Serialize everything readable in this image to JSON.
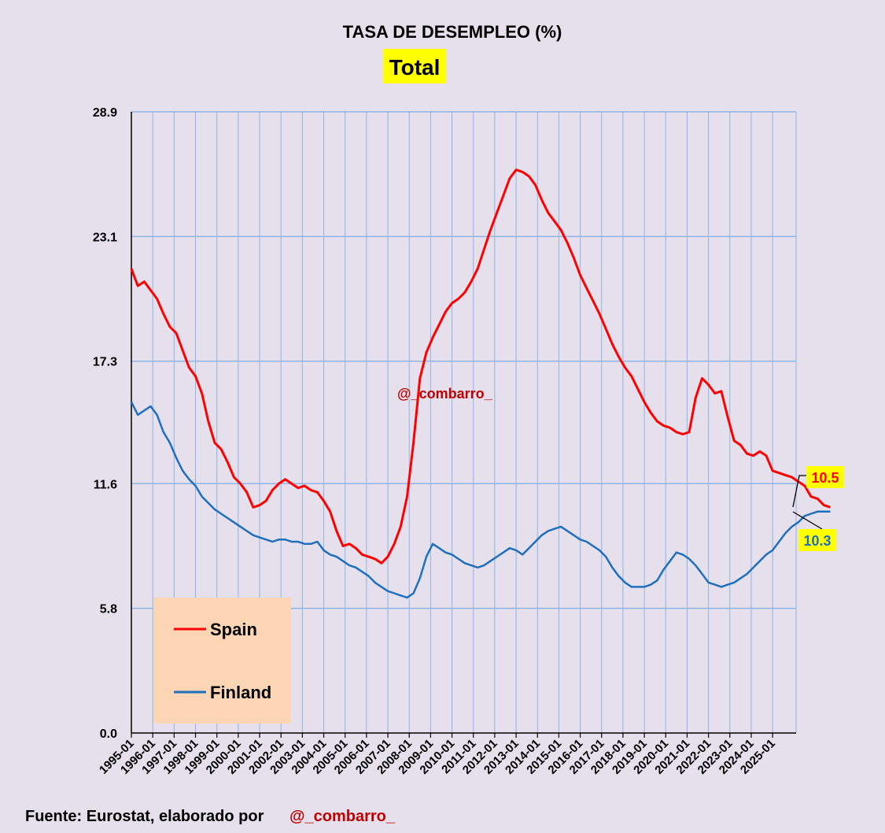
{
  "chart_data": {
    "type": "line",
    "title": "TASA DE DESEMPLEO (%)",
    "subtitle": "Total",
    "xlabel": "",
    "ylabel": "",
    "ylim": [
      0,
      28.9
    ],
    "yticks": [
      "0.0",
      "5.8",
      "11.6",
      "17.3",
      "23.1",
      "28.9"
    ],
    "categories": [
      "1995-01",
      "1996-01",
      "1997-01",
      "1998-01",
      "1999-01",
      "2000-01",
      "2001-01",
      "2002-01",
      "2003-01",
      "2004-01",
      "2005-01",
      "2006-01",
      "2007-01",
      "2008-01",
      "2009-01",
      "2010-01",
      "2011-01",
      "2012-01",
      "2013-01",
      "2014-01",
      "2015-01",
      "2016-01",
      "2017-01",
      "2018-01",
      "2019-01",
      "2020-01",
      "2021-01",
      "2022-01",
      "2023-01",
      "2024-01",
      "2025-01"
    ],
    "series": [
      {
        "name": "Spain",
        "color": "#ff0000",
        "points": [
          [
            0,
            21.6
          ],
          [
            0.3,
            20.8
          ],
          [
            0.6,
            21.0
          ],
          [
            0.9,
            20.6
          ],
          [
            1.2,
            20.2
          ],
          [
            1.5,
            19.5
          ],
          [
            1.8,
            18.9
          ],
          [
            2.1,
            18.6
          ],
          [
            2.4,
            17.8
          ],
          [
            2.7,
            17.0
          ],
          [
            3.0,
            16.6
          ],
          [
            3.3,
            15.8
          ],
          [
            3.6,
            14.5
          ],
          [
            3.9,
            13.5
          ],
          [
            4.2,
            13.2
          ],
          [
            4.5,
            12.6
          ],
          [
            4.8,
            11.9
          ],
          [
            5.1,
            11.6
          ],
          [
            5.4,
            11.2
          ],
          [
            5.7,
            10.5
          ],
          [
            6.0,
            10.6
          ],
          [
            6.3,
            10.8
          ],
          [
            6.6,
            11.3
          ],
          [
            6.9,
            11.6
          ],
          [
            7.2,
            11.8
          ],
          [
            7.5,
            11.6
          ],
          [
            7.8,
            11.4
          ],
          [
            8.1,
            11.5
          ],
          [
            8.4,
            11.3
          ],
          [
            8.7,
            11.2
          ],
          [
            9.0,
            10.8
          ],
          [
            9.3,
            10.3
          ],
          [
            9.6,
            9.4
          ],
          [
            9.9,
            8.7
          ],
          [
            10.2,
            8.8
          ],
          [
            10.5,
            8.6
          ],
          [
            10.8,
            8.3
          ],
          [
            11.1,
            8.2
          ],
          [
            11.4,
            8.1
          ],
          [
            11.7,
            7.9
          ],
          [
            12.0,
            8.2
          ],
          [
            12.3,
            8.8
          ],
          [
            12.6,
            9.6
          ],
          [
            12.9,
            11.0
          ],
          [
            13.2,
            13.5
          ],
          [
            13.5,
            16.5
          ],
          [
            13.8,
            17.7
          ],
          [
            14.1,
            18.4
          ],
          [
            14.4,
            19.0
          ],
          [
            14.7,
            19.6
          ],
          [
            15.0,
            20.0
          ],
          [
            15.3,
            20.2
          ],
          [
            15.6,
            20.5
          ],
          [
            15.9,
            21.0
          ],
          [
            16.2,
            21.6
          ],
          [
            16.5,
            22.5
          ],
          [
            16.8,
            23.4
          ],
          [
            17.1,
            24.2
          ],
          [
            17.4,
            25.0
          ],
          [
            17.7,
            25.8
          ],
          [
            18.0,
            26.2
          ],
          [
            18.3,
            26.1
          ],
          [
            18.6,
            25.9
          ],
          [
            18.9,
            25.5
          ],
          [
            19.2,
            24.8
          ],
          [
            19.5,
            24.2
          ],
          [
            19.8,
            23.8
          ],
          [
            20.1,
            23.4
          ],
          [
            20.4,
            22.8
          ],
          [
            20.7,
            22.1
          ],
          [
            21.0,
            21.3
          ],
          [
            21.3,
            20.7
          ],
          [
            21.6,
            20.1
          ],
          [
            21.9,
            19.5
          ],
          [
            22.2,
            18.8
          ],
          [
            22.5,
            18.1
          ],
          [
            22.8,
            17.5
          ],
          [
            23.1,
            17.0
          ],
          [
            23.4,
            16.6
          ],
          [
            23.7,
            16.0
          ],
          [
            24.0,
            15.4
          ],
          [
            24.3,
            14.9
          ],
          [
            24.6,
            14.5
          ],
          [
            24.9,
            14.3
          ],
          [
            25.2,
            14.2
          ],
          [
            25.5,
            14.0
          ],
          [
            25.8,
            13.9
          ],
          [
            26.1,
            14.0
          ],
          [
            26.4,
            15.6
          ],
          [
            26.7,
            16.5
          ],
          [
            27.0,
            16.2
          ],
          [
            27.3,
            15.8
          ],
          [
            27.6,
            15.9
          ],
          [
            27.9,
            14.7
          ],
          [
            28.2,
            13.6
          ],
          [
            28.5,
            13.4
          ],
          [
            28.8,
            13.0
          ],
          [
            29.1,
            12.9
          ],
          [
            29.4,
            13.1
          ],
          [
            29.7,
            12.9
          ],
          [
            30.0,
            12.2
          ],
          [
            30.3,
            12.1
          ],
          [
            30.6,
            12.0
          ],
          [
            30.9,
            11.9
          ],
          [
            31.2,
            11.7
          ],
          [
            31.5,
            11.5
          ],
          [
            31.8,
            11.0
          ],
          [
            32.1,
            10.9
          ],
          [
            32.4,
            10.6
          ],
          [
            32.7,
            10.5
          ]
        ]
      },
      {
        "name": "Finland",
        "color": "#1f6fbf",
        "points": [
          [
            0,
            15.4
          ],
          [
            0.3,
            14.8
          ],
          [
            0.6,
            15.0
          ],
          [
            0.9,
            15.2
          ],
          [
            1.2,
            14.8
          ],
          [
            1.5,
            14.0
          ],
          [
            1.8,
            13.5
          ],
          [
            2.1,
            12.8
          ],
          [
            2.4,
            12.2
          ],
          [
            2.7,
            11.8
          ],
          [
            3.0,
            11.5
          ],
          [
            3.3,
            11.0
          ],
          [
            3.6,
            10.7
          ],
          [
            3.9,
            10.4
          ],
          [
            4.2,
            10.2
          ],
          [
            4.5,
            10.0
          ],
          [
            4.8,
            9.8
          ],
          [
            5.1,
            9.6
          ],
          [
            5.4,
            9.4
          ],
          [
            5.7,
            9.2
          ],
          [
            6.0,
            9.1
          ],
          [
            6.3,
            9.0
          ],
          [
            6.6,
            8.9
          ],
          [
            6.9,
            9.0
          ],
          [
            7.2,
            9.0
          ],
          [
            7.5,
            8.9
          ],
          [
            7.8,
            8.9
          ],
          [
            8.1,
            8.8
          ],
          [
            8.4,
            8.8
          ],
          [
            8.7,
            8.9
          ],
          [
            9.0,
            8.5
          ],
          [
            9.3,
            8.3
          ],
          [
            9.6,
            8.2
          ],
          [
            9.9,
            8.0
          ],
          [
            10.2,
            7.8
          ],
          [
            10.5,
            7.7
          ],
          [
            10.8,
            7.5
          ],
          [
            11.1,
            7.3
          ],
          [
            11.4,
            7.0
          ],
          [
            11.7,
            6.8
          ],
          [
            12.0,
            6.6
          ],
          [
            12.3,
            6.5
          ],
          [
            12.6,
            6.4
          ],
          [
            12.9,
            6.3
          ],
          [
            13.2,
            6.5
          ],
          [
            13.5,
            7.2
          ],
          [
            13.8,
            8.2
          ],
          [
            14.1,
            8.8
          ],
          [
            14.4,
            8.6
          ],
          [
            14.7,
            8.4
          ],
          [
            15.0,
            8.3
          ],
          [
            15.3,
            8.1
          ],
          [
            15.6,
            7.9
          ],
          [
            15.9,
            7.8
          ],
          [
            16.2,
            7.7
          ],
          [
            16.5,
            7.8
          ],
          [
            16.8,
            8.0
          ],
          [
            17.1,
            8.2
          ],
          [
            17.4,
            8.4
          ],
          [
            17.7,
            8.6
          ],
          [
            18.0,
            8.5
          ],
          [
            18.3,
            8.3
          ],
          [
            18.6,
            8.6
          ],
          [
            18.9,
            8.9
          ],
          [
            19.2,
            9.2
          ],
          [
            19.5,
            9.4
          ],
          [
            19.8,
            9.5
          ],
          [
            20.1,
            9.6
          ],
          [
            20.4,
            9.4
          ],
          [
            20.7,
            9.2
          ],
          [
            21.0,
            9.0
          ],
          [
            21.3,
            8.9
          ],
          [
            21.6,
            8.7
          ],
          [
            21.9,
            8.5
          ],
          [
            22.2,
            8.2
          ],
          [
            22.5,
            7.7
          ],
          [
            22.8,
            7.3
          ],
          [
            23.1,
            7.0
          ],
          [
            23.4,
            6.8
          ],
          [
            23.7,
            6.8
          ],
          [
            24.0,
            6.8
          ],
          [
            24.3,
            6.9
          ],
          [
            24.6,
            7.1
          ],
          [
            24.9,
            7.6
          ],
          [
            25.2,
            8.0
          ],
          [
            25.5,
            8.4
          ],
          [
            25.8,
            8.3
          ],
          [
            26.1,
            8.1
          ],
          [
            26.4,
            7.8
          ],
          [
            26.7,
            7.4
          ],
          [
            27.0,
            7.0
          ],
          [
            27.3,
            6.9
          ],
          [
            27.6,
            6.8
          ],
          [
            27.9,
            6.9
          ],
          [
            28.2,
            7.0
          ],
          [
            28.5,
            7.2
          ],
          [
            28.8,
            7.4
          ],
          [
            29.1,
            7.7
          ],
          [
            29.4,
            8.0
          ],
          [
            29.7,
            8.3
          ],
          [
            30.0,
            8.5
          ],
          [
            30.3,
            8.9
          ],
          [
            30.6,
            9.3
          ],
          [
            30.9,
            9.6
          ],
          [
            31.2,
            9.8
          ],
          [
            31.5,
            10.1
          ],
          [
            31.8,
            10.2
          ],
          [
            32.1,
            10.3
          ],
          [
            32.4,
            10.3
          ],
          [
            32.7,
            10.3
          ]
        ]
      }
    ],
    "end_labels": {
      "spain": "10.5",
      "finland": "10.3"
    },
    "legend": [
      "Spain",
      "Finland"
    ],
    "legend_position": "bottom-left",
    "annotation": "@_combarro_"
  },
  "footer": {
    "source": "Fuente: Eurostat, elaborado por",
    "handle": "@_combarro_"
  }
}
